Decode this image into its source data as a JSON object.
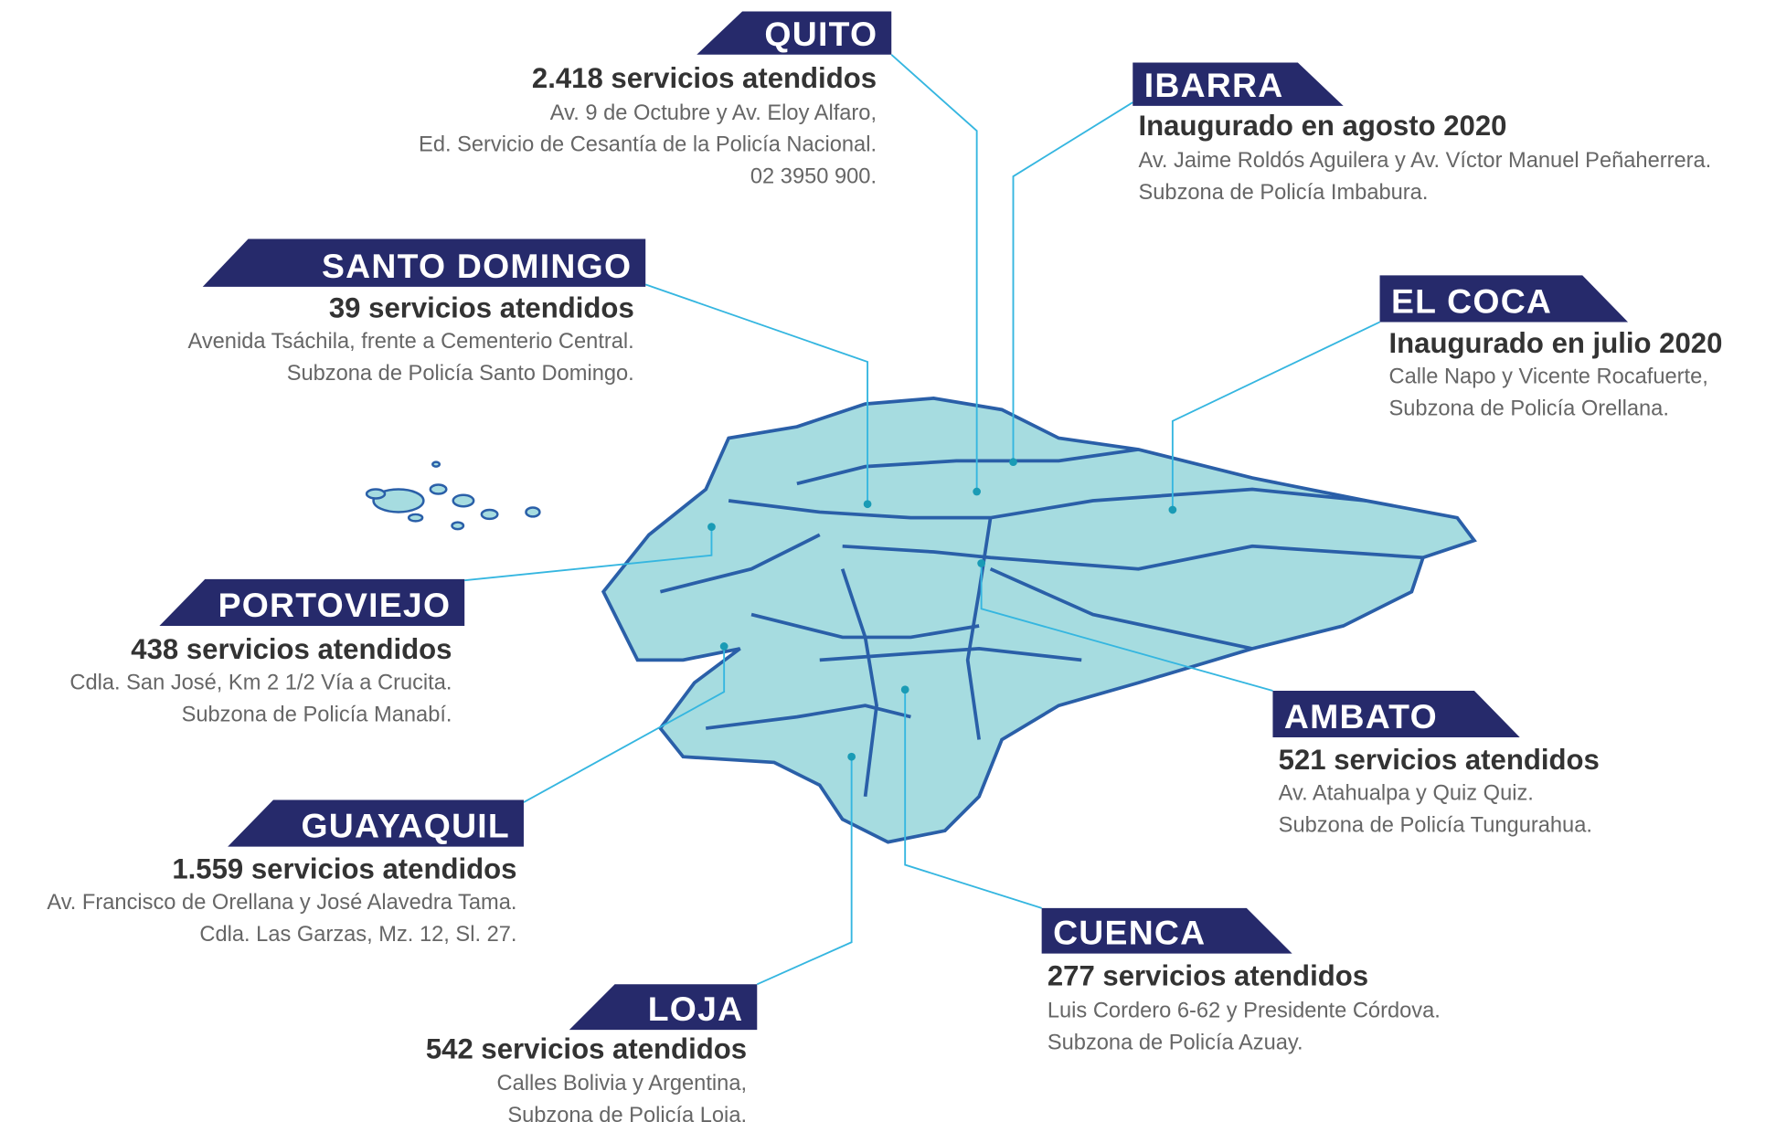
{
  "locations": [
    {
      "name": "QUITO",
      "headline": "2.418 servicios atendidos",
      "lines": [
        "Av. 9 de Octubre y Av. Eloy Alfaro,",
        "Ed. Servicio de Cesantía de la Policía Nacional.",
        "02 3950 900."
      ]
    },
    {
      "name": "IBARRA",
      "headline": "Inaugurado en agosto 2020",
      "lines": [
        "Av. Jaime Roldós Aguilera y Av. Víctor Manuel Peñaherrera.",
        "Subzona de Policía Imbabura."
      ]
    },
    {
      "name": "SANTO DOMINGO",
      "headline": "39 servicios atendidos",
      "lines": [
        "Avenida Tsáchila, frente a Cementerio Central.",
        "Subzona de Policía Santo Domingo."
      ]
    },
    {
      "name": "EL COCA",
      "headline": "Inaugurado en julio 2020",
      "lines": [
        "Calle Napo y Vicente Rocafuerte,",
        "Subzona de Policía Orellana."
      ]
    },
    {
      "name": "PORTOVIEJO",
      "headline": "438 servicios atendidos",
      "lines": [
        "Cdla. San José, Km 2 1/2 Vía a Crucita.",
        "Subzona de Policía Manabí."
      ]
    },
    {
      "name": "AMBATO",
      "headline": "521 servicios atendidos",
      "lines": [
        "Av. Atahualpa y  Quiz Quiz.",
        "Subzona de Policía Tungurahua."
      ]
    },
    {
      "name": "GUAYAQUIL",
      "headline": "1.559 servicios atendidos",
      "lines": [
        "Av. Francisco de Orellana y José Alavedra Tama.",
        "Cdla. Las Garzas, Mz. 12, Sl. 27."
      ]
    },
    {
      "name": "CUENCA",
      "headline": "277 servicios atendidos",
      "lines": [
        "Luis Cordero 6-62 y Presidente Córdova.",
        "Subzona de Policía Azuay."
      ]
    },
    {
      "name": "LOJA",
      "headline": "542 servicios atendidos",
      "lines": [
        "Calles Bolivia y Argentina,",
        "Subzona de Policía Loja."
      ]
    }
  ]
}
